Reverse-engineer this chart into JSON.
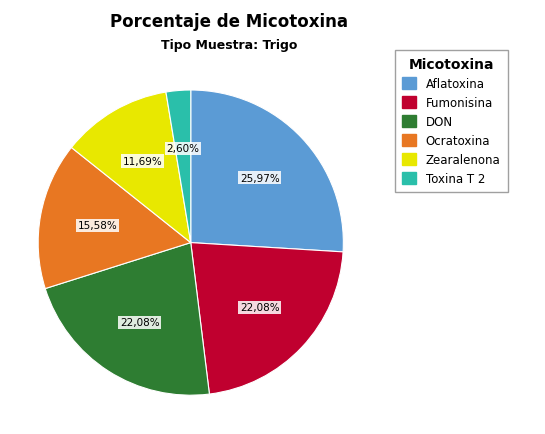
{
  "title": "Porcentaje de Micotoxina",
  "subtitle": "Tipo Muestra: Trigo",
  "legend_title": "Micotoxina",
  "labels": [
    "Aflatoxina",
    "Fumonisina",
    "DON",
    "Ocratoxina",
    "Zearalenona",
    "Toxina T 2"
  ],
  "values": [
    25.97,
    22.08,
    22.08,
    15.58,
    11.69,
    2.6
  ],
  "colors": [
    "#5B9BD5",
    "#C0002F",
    "#2E7D32",
    "#E87722",
    "#E8E800",
    "#2ABFAA"
  ],
  "pct_labels": [
    "25,97%",
    "22,08%",
    "22,08%",
    "15,58%",
    "11,69%",
    "2,60%"
  ],
  "startangle": 90,
  "figsize": [
    5.45,
    4.35
  ],
  "dpi": 100
}
